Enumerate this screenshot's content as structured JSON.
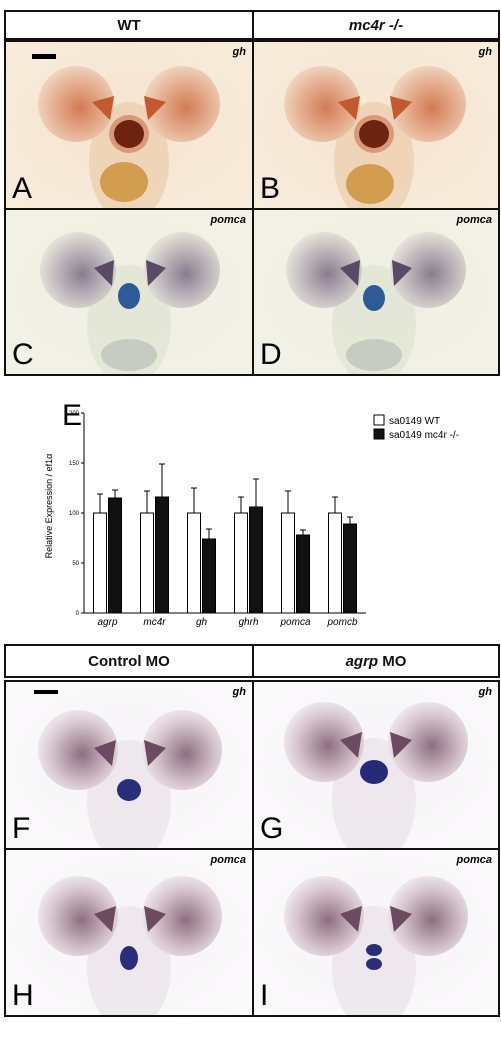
{
  "top_header": {
    "left": "WT",
    "right": "mc4r -/-"
  },
  "top_panels": [
    {
      "letter": "A",
      "probe": "gh"
    },
    {
      "letter": "B",
      "probe": "gh"
    },
    {
      "letter": "C",
      "probe": "pomca"
    },
    {
      "letter": "D",
      "probe": "pomca"
    }
  ],
  "chart_label": "E",
  "chart_data": {
    "type": "bar",
    "ylabel": "Relative Expression / ef1α",
    "ylim": [
      0,
      200
    ],
    "yticks": [
      0,
      50,
      100,
      150,
      200
    ],
    "categories": [
      "agrp",
      "mc4r",
      "gh",
      "ghrh",
      "pomca",
      "pomcb"
    ],
    "series": [
      {
        "name": "sa0149 WT",
        "values": [
          100,
          100,
          100,
          100,
          100,
          100
        ],
        "errors": [
          19,
          22,
          25,
          16,
          22,
          16
        ],
        "color": "#ffffff"
      },
      {
        "name": "sa0149 mc4r -/-",
        "values": [
          115,
          116,
          74,
          106,
          78,
          89
        ],
        "errors": [
          8,
          33,
          10,
          28,
          5,
          7
        ],
        "color": "#111111"
      }
    ],
    "legend_position": "top-right"
  },
  "bottom_header": {
    "left": "Control MO",
    "right_italic": "agrp",
    "right_rest": " MO"
  },
  "bottom_panels": [
    {
      "letter": "F",
      "probe": "gh"
    },
    {
      "letter": "G",
      "probe": "gh"
    },
    {
      "letter": "H",
      "probe": "pomca"
    },
    {
      "letter": "I",
      "probe": "pomca"
    }
  ]
}
